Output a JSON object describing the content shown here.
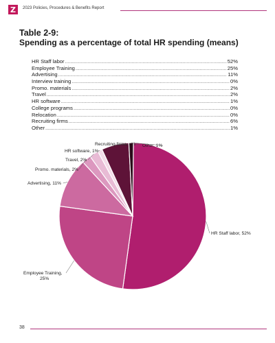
{
  "header": {
    "logo_glyph": "Z",
    "report_title": "2023 Policies, Procedures & Benefits Report",
    "accent_color": "#c2185b"
  },
  "table": {
    "title": "Table 2-9:",
    "subtitle": "Spending as a percentage of total HR spending (means)",
    "rows": [
      {
        "label": "HR Staff labor",
        "value": "52%"
      },
      {
        "label": "Employee Training",
        "value": "25%"
      },
      {
        "label": "Advertising",
        "value": "11%"
      },
      {
        "label": "Interview training",
        "value": "0%"
      },
      {
        "label": "Promo. materials",
        "value": "2%"
      },
      {
        "label": "Travel",
        "value": "2%"
      },
      {
        "label": "HR software",
        "value": "1%"
      },
      {
        "label": "College programs",
        "value": "0%"
      },
      {
        "label": "Relocation",
        "value": "0%"
      },
      {
        "label": "Recruiting firms",
        "value": "6%"
      },
      {
        "label": "Other",
        "value": "1%"
      }
    ]
  },
  "chart_data": {
    "type": "pie",
    "slices": [
      {
        "label": "HR Staff labor, 52%",
        "value": 52,
        "color": "#b01e6e"
      },
      {
        "label": "Employee Training, 25%",
        "value": 25,
        "color": "#bf4586"
      },
      {
        "label": "Advertising, 11%",
        "value": 11,
        "color": "#cc6aa0"
      },
      {
        "label": "Promo. materials, 2%",
        "value": 2,
        "color": "#dc98bf"
      },
      {
        "label": "Travel, 2%",
        "value": 2,
        "color": "#e8bbd5"
      },
      {
        "label": "HR software, 1%",
        "value": 1,
        "color": "#f3dbe8"
      },
      {
        "label": "Recruiting firms, 6%",
        "value": 6,
        "color": "#5e1338"
      },
      {
        "label": "Other, 1%",
        "value": 1,
        "color": "#2b0a1a"
      }
    ]
  },
  "footer": {
    "page_number": "38"
  }
}
